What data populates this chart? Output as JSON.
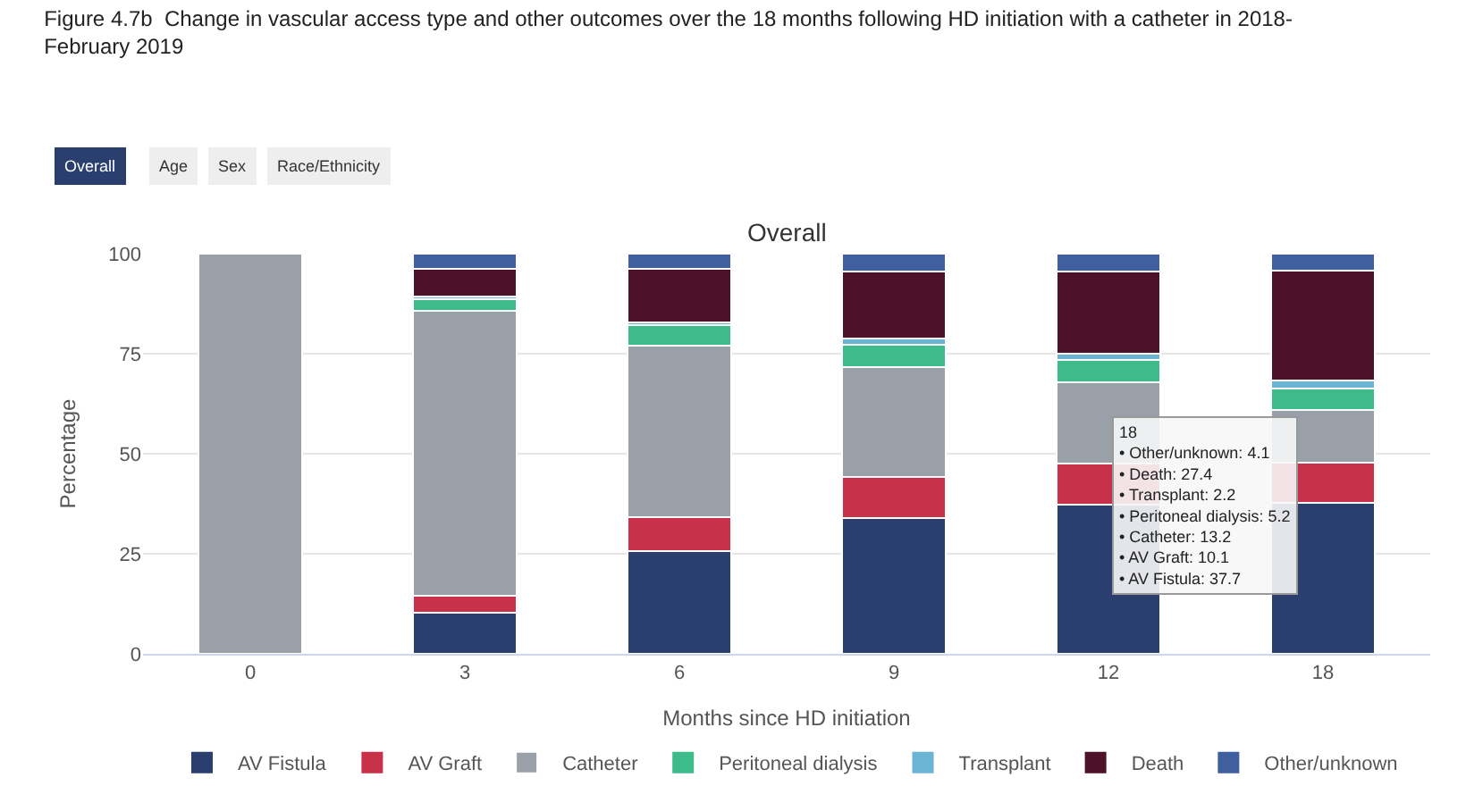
{
  "chart_data": {
    "type": "bar",
    "stacked": true,
    "title": "Figure 4.7b  Change in vascular access type and other outcomes over the 18 months following HD initiation with a catheter in 2018-February 2019",
    "subtitle": "Overall",
    "xlabel": "Months since HD initiation",
    "ylabel": "Percentage",
    "categories": [
      "0",
      "3",
      "6",
      "9",
      "12",
      "18"
    ],
    "series": [
      {
        "name": "AV Fistula",
        "color": "#2b3f6e",
        "values": [
          0,
          10.2,
          25.6,
          34.0,
          37.3,
          37.7
        ]
      },
      {
        "name": "AV Graft",
        "color": "#c8314a",
        "values": [
          0,
          4.4,
          8.5,
          10.2,
          10.3,
          10.1
        ]
      },
      {
        "name": "Catheter",
        "color": "#9aa0a8",
        "values": [
          100,
          71.1,
          42.8,
          27.5,
          20.2,
          13.2
        ]
      },
      {
        "name": "Peritoneal dialysis",
        "color": "#3dbb8a",
        "values": [
          0,
          3.0,
          5.3,
          5.6,
          5.7,
          5.2
        ]
      },
      {
        "name": "Transplant",
        "color": "#6cb4d4",
        "values": [
          0,
          0.5,
          0.6,
          1.6,
          1.5,
          2.2
        ]
      },
      {
        "name": "Death",
        "color": "#4d1129",
        "values": [
          0,
          7.0,
          13.4,
          16.7,
          20.6,
          27.4
        ]
      },
      {
        "name": "Other/unknown",
        "color": "#3f5f9f",
        "values": [
          0,
          3.8,
          3.8,
          4.4,
          4.4,
          4.1
        ]
      }
    ],
    "ylim": [
      0,
      100
    ],
    "yticks": [
      0,
      25,
      50,
      75,
      100
    ],
    "grid": "y",
    "legend": "bottom",
    "annotations": [
      "Overall",
      "Age",
      "Sex",
      "Race/Ethnicity",
      "18",
      "• Other/unknown: 4.1",
      "• Death: 27.4",
      "• Transplant: 2.2",
      "• Peritoneal dialysis: 5.2",
      "• Catheter: 13.2",
      "• AV Graft: 10.1",
      "• AV Fistula: 37.7"
    ]
  }
}
